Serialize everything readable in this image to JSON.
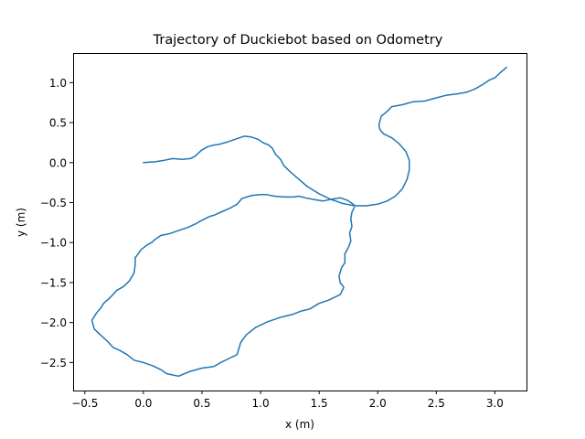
{
  "chart_data": {
    "type": "line",
    "title": "Trajectory of Duckiebot based on Odometry",
    "xlabel": "x (m)",
    "ylabel": "y (m)",
    "xlim": [
      -0.6,
      3.27
    ],
    "ylim": [
      -2.85,
      1.37
    ],
    "xticks": [
      -0.5,
      0.0,
      0.5,
      1.0,
      1.5,
      2.0,
      2.5,
      3.0
    ],
    "xtick_labels": [
      "−0.5",
      "0.0",
      "0.5",
      "1.0",
      "1.5",
      "2.0",
      "2.5",
      "3.0"
    ],
    "yticks": [
      1.0,
      0.5,
      0.0,
      -0.5,
      -1.0,
      -1.5,
      -2.0,
      -2.5
    ],
    "ytick_labels": [
      "1.0",
      "0.5",
      "0.0",
      "−0.5",
      "−1.0",
      "−1.5",
      "−2.0",
      "−2.5"
    ],
    "grid": false,
    "series": [
      {
        "color": "#1f77b4",
        "points": [
          [
            0.0,
            0.0
          ],
          [
            0.1,
            0.01
          ],
          [
            0.18,
            0.03
          ],
          [
            0.25,
            0.05
          ],
          [
            0.33,
            0.04
          ],
          [
            0.4,
            0.05
          ],
          [
            0.44,
            0.08
          ],
          [
            0.5,
            0.16
          ],
          [
            0.55,
            0.2
          ],
          [
            0.6,
            0.22
          ],
          [
            0.65,
            0.23
          ],
          [
            0.72,
            0.26
          ],
          [
            0.8,
            0.3
          ],
          [
            0.86,
            0.33
          ],
          [
            0.92,
            0.32
          ],
          [
            0.98,
            0.29
          ],
          [
            1.02,
            0.25
          ],
          [
            1.07,
            0.22
          ],
          [
            1.1,
            0.18
          ],
          [
            1.13,
            0.1
          ],
          [
            1.17,
            0.04
          ],
          [
            1.2,
            -0.04
          ],
          [
            1.25,
            -0.11
          ],
          [
            1.32,
            -0.2
          ],
          [
            1.4,
            -0.3
          ],
          [
            1.5,
            -0.39
          ],
          [
            1.6,
            -0.46
          ],
          [
            1.7,
            -0.51
          ],
          [
            1.8,
            -0.54
          ],
          [
            1.9,
            -0.54
          ],
          [
            2.0,
            -0.52
          ],
          [
            2.08,
            -0.48
          ],
          [
            2.15,
            -0.42
          ],
          [
            2.21,
            -0.33
          ],
          [
            2.25,
            -0.21
          ],
          [
            2.27,
            -0.09
          ],
          [
            2.27,
            0.03
          ],
          [
            2.24,
            0.14
          ],
          [
            2.18,
            0.24
          ],
          [
            2.12,
            0.31
          ],
          [
            2.05,
            0.36
          ],
          [
            2.02,
            0.41
          ],
          [
            2.01,
            0.47
          ],
          [
            2.03,
            0.58
          ],
          [
            2.08,
            0.64
          ],
          [
            2.12,
            0.7
          ],
          [
            2.2,
            0.72
          ],
          [
            2.25,
            0.74
          ],
          [
            2.3,
            0.76
          ],
          [
            2.4,
            0.77
          ],
          [
            2.5,
            0.81
          ],
          [
            2.58,
            0.84
          ],
          [
            2.68,
            0.86
          ],
          [
            2.76,
            0.88
          ],
          [
            2.83,
            0.92
          ],
          [
            2.9,
            0.98
          ],
          [
            2.95,
            1.03
          ],
          [
            3.0,
            1.06
          ],
          [
            3.05,
            1.13
          ],
          [
            3.1,
            1.19
          ]
        ]
      },
      {
        "color": "#1f77b4",
        "points": [
          [
            1.8,
            -0.53
          ],
          [
            1.74,
            -0.47
          ],
          [
            1.68,
            -0.44
          ],
          [
            1.6,
            -0.46
          ],
          [
            1.53,
            -0.48
          ],
          [
            1.45,
            -0.46
          ],
          [
            1.38,
            -0.44
          ],
          [
            1.33,
            -0.42
          ],
          [
            1.28,
            -0.43
          ],
          [
            1.2,
            -0.43
          ],
          [
            1.12,
            -0.42
          ],
          [
            1.05,
            -0.4
          ],
          [
            1.0,
            -0.4
          ],
          [
            0.93,
            -0.41
          ],
          [
            0.88,
            -0.43
          ],
          [
            0.84,
            -0.45
          ],
          [
            0.8,
            -0.52
          ],
          [
            0.74,
            -0.57
          ],
          [
            0.66,
            -0.62
          ],
          [
            0.6,
            -0.66
          ],
          [
            0.57,
            -0.67
          ],
          [
            0.5,
            -0.72
          ],
          [
            0.44,
            -0.77
          ],
          [
            0.38,
            -0.81
          ],
          [
            0.3,
            -0.85
          ],
          [
            0.22,
            -0.89
          ],
          [
            0.15,
            -0.91
          ],
          [
            0.1,
            -0.96
          ],
          [
            0.07,
            -1.0
          ],
          [
            0.03,
            -1.03
          ],
          [
            -0.02,
            -1.09
          ],
          [
            -0.05,
            -1.15
          ],
          [
            -0.07,
            -1.19
          ],
          [
            -0.07,
            -1.28
          ],
          [
            -0.08,
            -1.38
          ],
          [
            -0.12,
            -1.48
          ],
          [
            -0.17,
            -1.55
          ],
          [
            -0.23,
            -1.6
          ],
          [
            -0.26,
            -1.65
          ],
          [
            -0.3,
            -1.71
          ],
          [
            -0.34,
            -1.76
          ],
          [
            -0.36,
            -1.81
          ],
          [
            -0.4,
            -1.88
          ],
          [
            -0.44,
            -1.97
          ],
          [
            -0.42,
            -2.08
          ],
          [
            -0.37,
            -2.15
          ],
          [
            -0.31,
            -2.23
          ],
          [
            -0.26,
            -2.31
          ],
          [
            -0.2,
            -2.35
          ],
          [
            -0.14,
            -2.4
          ],
          [
            -0.08,
            -2.47
          ],
          [
            0.0,
            -2.5
          ],
          [
            0.08,
            -2.54
          ],
          [
            0.15,
            -2.59
          ],
          [
            0.2,
            -2.64
          ],
          [
            0.3,
            -2.67
          ],
          [
            0.4,
            -2.61
          ],
          [
            0.5,
            -2.57
          ],
          [
            0.6,
            -2.55
          ],
          [
            0.66,
            -2.5
          ],
          [
            0.73,
            -2.45
          ],
          [
            0.8,
            -2.4
          ],
          [
            0.83,
            -2.25
          ],
          [
            0.88,
            -2.15
          ],
          [
            0.96,
            -2.06
          ],
          [
            1.06,
            -1.99
          ],
          [
            1.18,
            -1.93
          ],
          [
            1.27,
            -1.9
          ],
          [
            1.34,
            -1.86
          ],
          [
            1.42,
            -1.83
          ],
          [
            1.5,
            -1.76
          ],
          [
            1.58,
            -1.72
          ],
          [
            1.68,
            -1.65
          ],
          [
            1.71,
            -1.56
          ],
          [
            1.68,
            -1.5
          ],
          [
            1.67,
            -1.42
          ],
          [
            1.69,
            -1.32
          ],
          [
            1.72,
            -1.25
          ],
          [
            1.72,
            -1.14
          ],
          [
            1.75,
            -1.06
          ],
          [
            1.77,
            -0.98
          ],
          [
            1.76,
            -0.88
          ],
          [
            1.78,
            -0.8
          ],
          [
            1.77,
            -0.7
          ],
          [
            1.78,
            -0.62
          ],
          [
            1.8,
            -0.56
          ]
        ]
      }
    ]
  }
}
